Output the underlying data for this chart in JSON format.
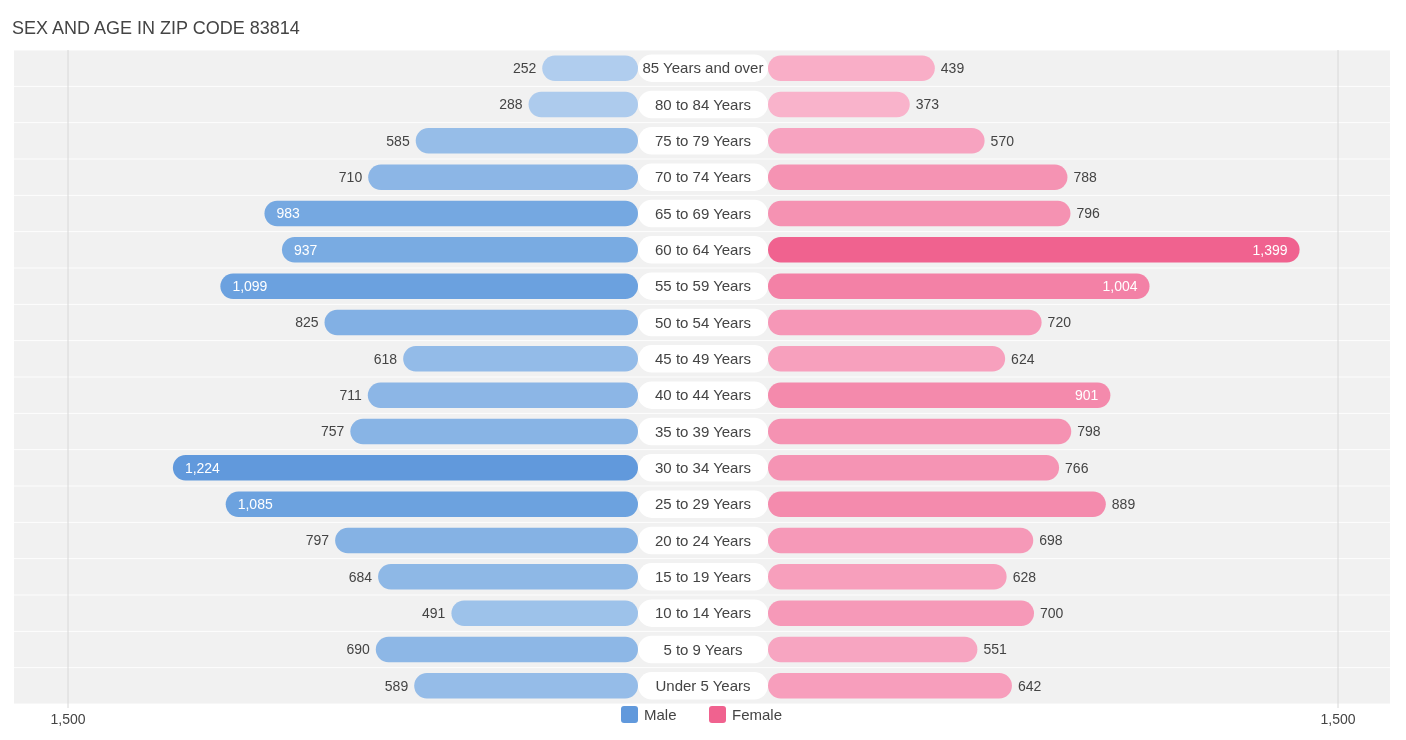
{
  "chart_data": [
    {
      "type": "bar",
      "orientation": "horizontal",
      "title": "SEX AND AGE IN ZIP CODE 83814",
      "categories": [
        "85 Years and over",
        "80 to 84 Years",
        "75 to 79 Years",
        "70 to 74 Years",
        "65 to 69 Years",
        "60 to 64 Years",
        "55 to 59 Years",
        "50 to 54 Years",
        "45 to 49 Years",
        "40 to 44 Years",
        "35 to 39 Years",
        "30 to 34 Years",
        "25 to 29 Years",
        "20 to 24 Years",
        "15 to 19 Years",
        "10 to 14 Years",
        "5 to 9 Years",
        "Under 5 Years"
      ],
      "series": [
        {
          "name": "Male",
          "color": "#6199dc",
          "values": [
            252,
            288,
            585,
            710,
            983,
            937,
            1099,
            825,
            618,
            711,
            757,
            1224,
            1085,
            797,
            684,
            491,
            690,
            589
          ],
          "value_labels": [
            "252",
            "288",
            "585",
            "710",
            "983",
            "937",
            "1,099",
            "825",
            "618",
            "711",
            "757",
            "1,224",
            "1,085",
            "797",
            "684",
            "491",
            "690",
            "589"
          ],
          "colors": [
            "#b0cdee",
            "#adcbed",
            "#96bde8",
            "#8cb6e6",
            "#75a8e1",
            "#79abe2",
            "#6ba1df",
            "#82b0e4",
            "#93bbe8",
            "#8cb6e6",
            "#88b4e5",
            "#6199dc",
            "#6ca2df",
            "#85b2e4",
            "#8eb8e6",
            "#9dc2ea",
            "#8db7e6",
            "#95bce8"
          ]
        }
      ],
      "xlim": [
        1500,
        0
      ],
      "xticks": [
        {
          "value": 1500,
          "label": "1,500"
        }
      ],
      "legend": "bottom right"
    },
    {
      "type": "bar",
      "orientation": "horizontal",
      "series": [
        {
          "name": "Female",
          "color": "#f0628f",
          "values": [
            439,
            373,
            570,
            788,
            796,
            1399,
            1004,
            720,
            624,
            901,
            798,
            766,
            889,
            698,
            628,
            700,
            551,
            642
          ],
          "value_labels": [
            "439",
            "373",
            "570",
            "788",
            "796",
            "1,399",
            "1,004",
            "720",
            "624",
            "901",
            "798",
            "766",
            "889",
            "698",
            "628",
            "700",
            "551",
            "642"
          ],
          "colors": [
            "#f9aec7",
            "#f9b3cb",
            "#f7a3c0",
            "#f593b3",
            "#f592b2",
            "#f0628f",
            "#f381a6",
            "#f697b7",
            "#f7a0bd",
            "#f48aac",
            "#f592b2",
            "#f594b4",
            "#f48bad",
            "#f699b8",
            "#f79fbc",
            "#f699b8",
            "#f7a5c1",
            "#f79ebc"
          ]
        }
      ],
      "xlim": [
        0,
        1500
      ],
      "xticks": [
        {
          "value": 1500,
          "label": "1,500"
        }
      ],
      "legend": "bottom left"
    }
  ]
}
